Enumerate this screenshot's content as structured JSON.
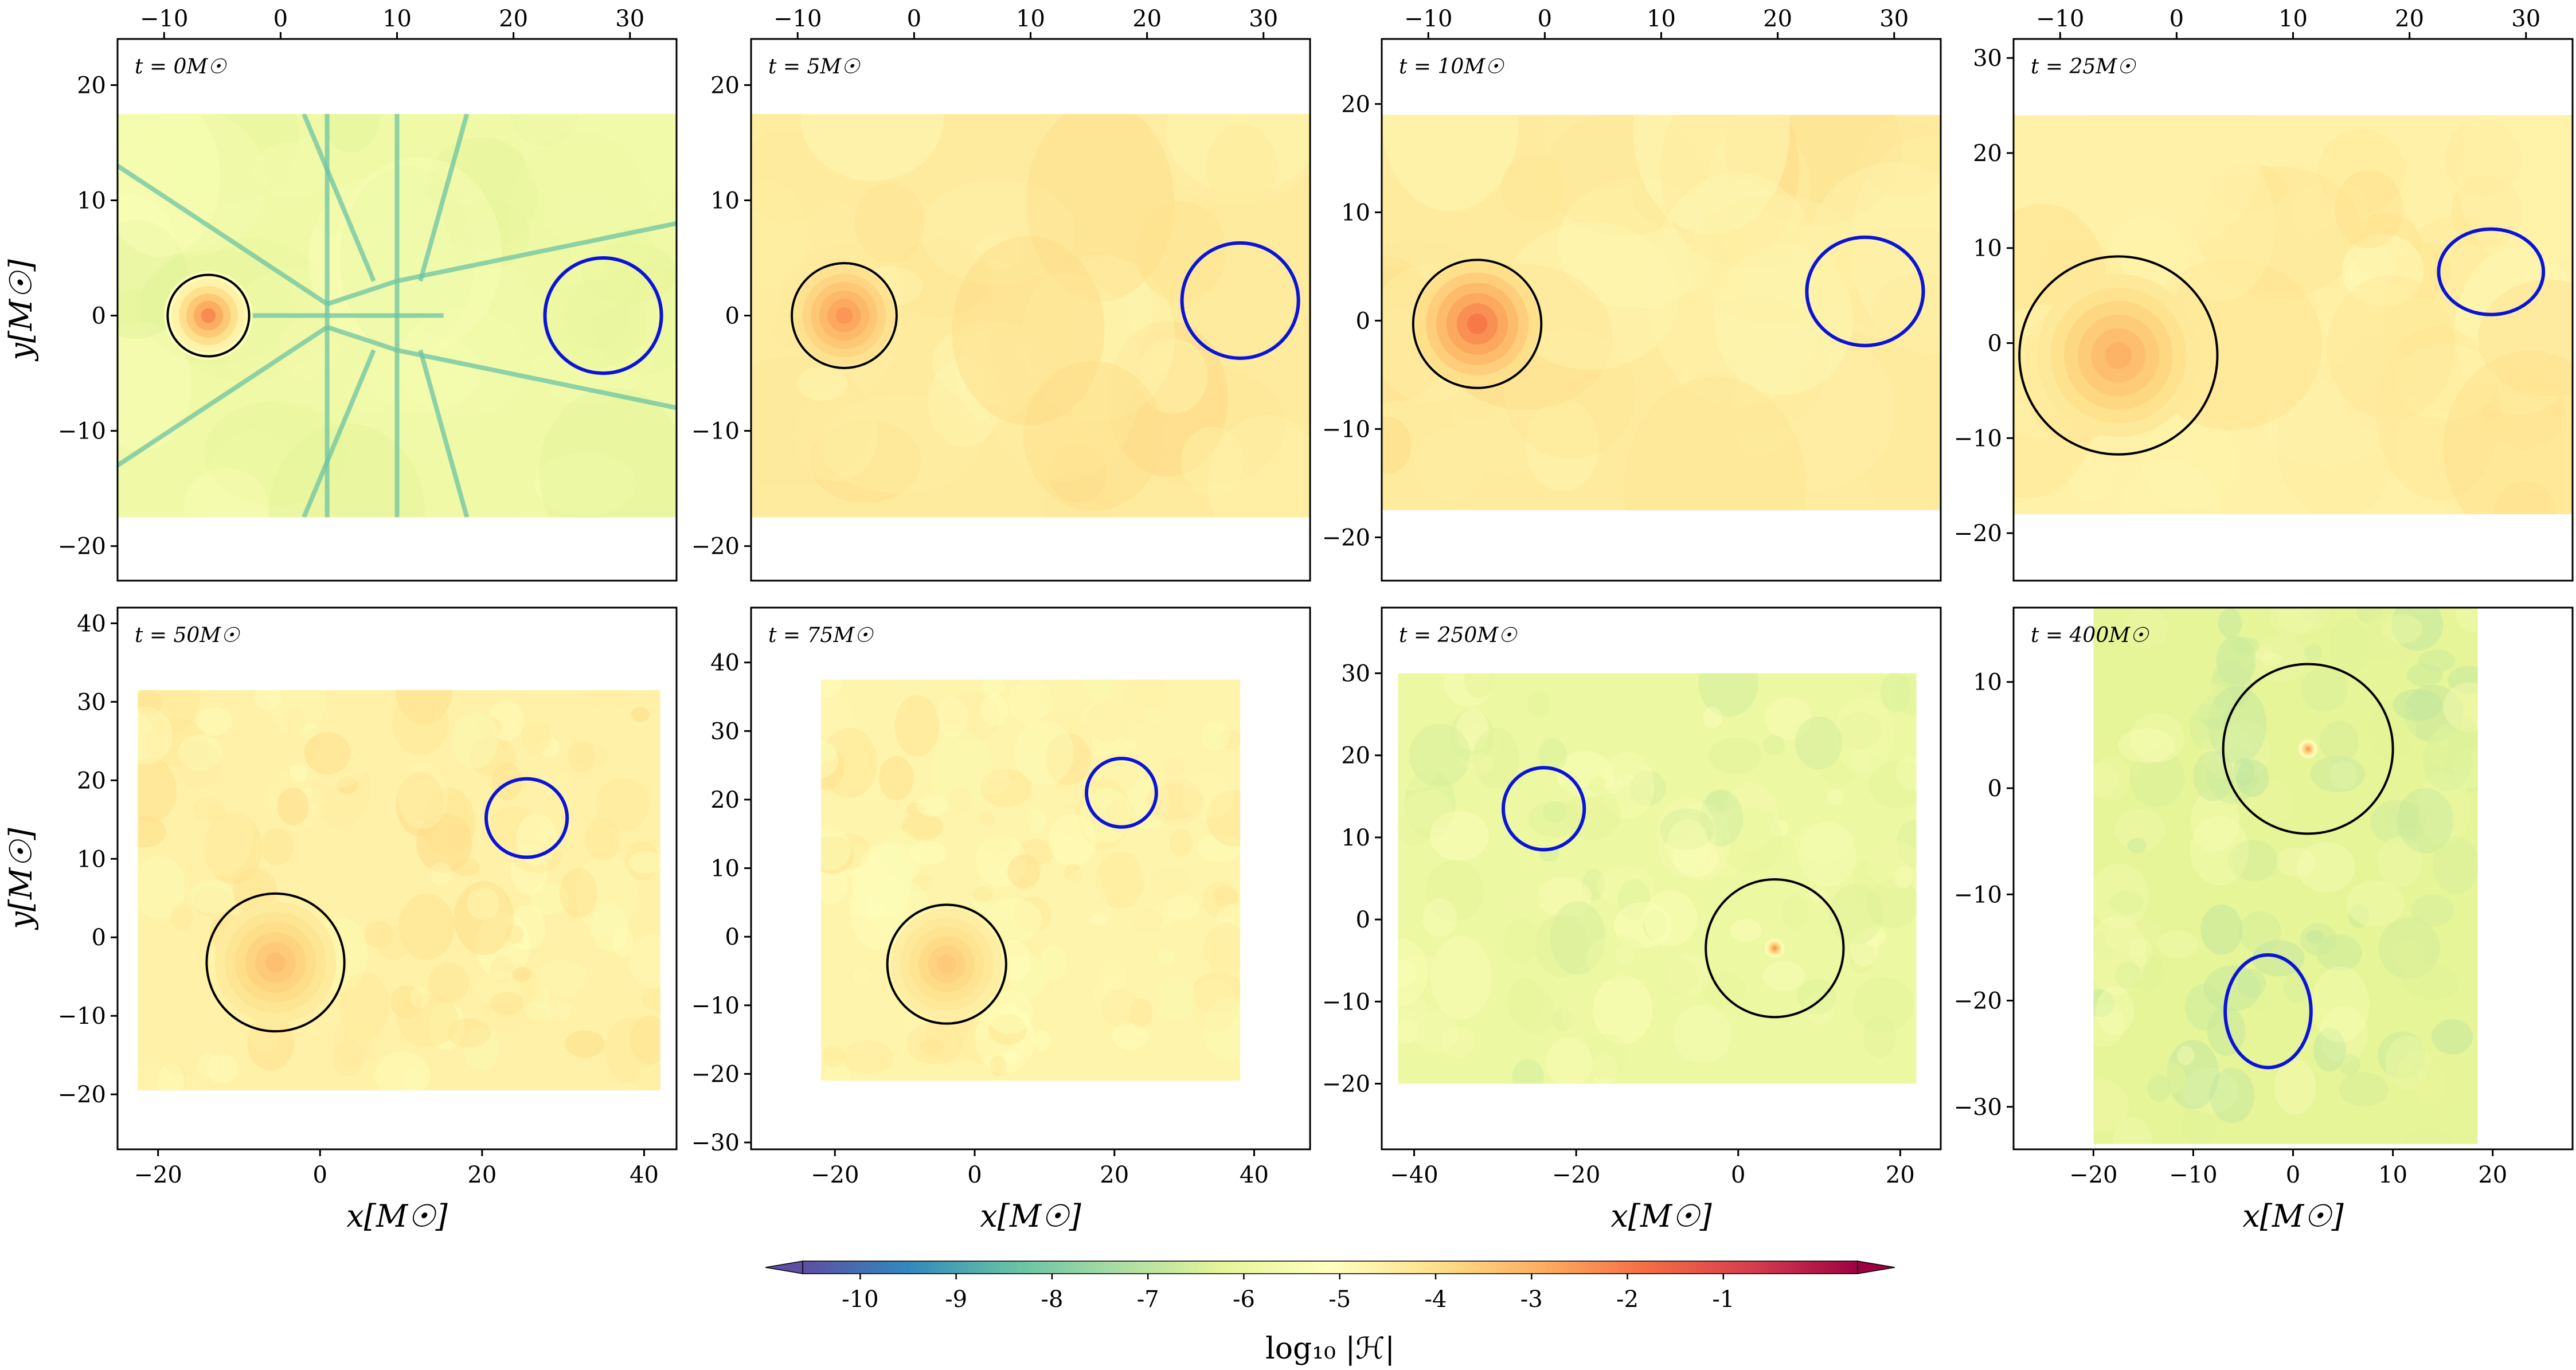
{
  "chart_data": {
    "type": "heatmap",
    "colorbar": {
      "label": "log₁₀ |ℋ|",
      "range": [
        -10.6,
        0.4
      ],
      "ticks": [
        -10,
        -9,
        -8,
        -7,
        -6,
        -5,
        -4,
        -3,
        -2,
        -1
      ],
      "tick_labels": [
        "-10",
        "-9",
        "-8",
        "-7",
        "-6",
        "-5",
        "-4",
        "-3",
        "-2",
        "-1"
      ],
      "extend": "both",
      "colormap": [
        "#5e4fa2",
        "#3288bd",
        "#66c2a5",
        "#abdda4",
        "#e6f598",
        "#ffffbf",
        "#fee08b",
        "#fdae61",
        "#f46d43",
        "#d53e4f",
        "#9e0142"
      ]
    },
    "panels": [
      {
        "time_label": "t = 0M☉",
        "xlim": [
          -14,
          34
        ],
        "ylim": [
          -23,
          24
        ],
        "xticks": [
          -10,
          0,
          10,
          20,
          30
        ],
        "yticks": [
          -20,
          -10,
          0,
          10,
          20
        ],
        "xaxis_position": "top",
        "ylabel": "y[M☉]",
        "xlabel": "",
        "field_extent": {
          "x": [
            -14,
            34
          ],
          "y": [
            -17.5,
            17.5
          ]
        },
        "field_mean": -5.8,
        "black_hole": {
          "x": -6.2,
          "y": 0,
          "r": 3.5
        },
        "source": {
          "x": 27.7,
          "y": 0,
          "r": 5
        },
        "hotspots": [
          {
            "x": -6.2,
            "y": 0,
            "r": 3.8,
            "v": -2.3
          }
        ]
      },
      {
        "time_label": "t = 5M☉",
        "xlim": [
          -14,
          34
        ],
        "ylim": [
          -23,
          24
        ],
        "xticks": [
          -10,
          0,
          10,
          20,
          30
        ],
        "yticks": [
          -20,
          -10,
          0,
          10,
          20
        ],
        "xaxis_position": "top",
        "ylabel": "",
        "xlabel": "",
        "field_extent": {
          "x": [
            -14,
            34
          ],
          "y": [
            -17.5,
            17.5
          ]
        },
        "field_mean": -4.4,
        "black_hole": {
          "x": -6,
          "y": 0,
          "r": 4.5
        },
        "source": {
          "x": 28,
          "y": 1.3,
          "r": 5
        },
        "hotspots": [
          {
            "x": -6,
            "y": 0,
            "r": 4.3,
            "v": -2.5
          }
        ]
      },
      {
        "time_label": "t = 10M☉",
        "xlim": [
          -14,
          34
        ],
        "ylim": [
          -24,
          26
        ],
        "xticks": [
          -10,
          0,
          10,
          20,
          30
        ],
        "yticks": [
          -20,
          -10,
          0,
          10,
          20
        ],
        "xaxis_position": "top",
        "ylabel": "",
        "xlabel": "",
        "field_extent": {
          "x": [
            -14,
            34
          ],
          "y": [
            -17.5,
            19
          ]
        },
        "field_mean": -4.4,
        "black_hole": {
          "x": -5.8,
          "y": -0.3,
          "r": 5.5
        },
        "source": {
          "x": 27.5,
          "y": 2.7,
          "r": 5
        },
        "hotspots": [
          {
            "x": -5.8,
            "y": -0.3,
            "r": 5.3,
            "v": -2.0
          }
        ]
      },
      {
        "time_label": "t = 25M☉",
        "xlim": [
          -14,
          34
        ],
        "ylim": [
          -25,
          32
        ],
        "xticks": [
          -10,
          0,
          10,
          20,
          30
        ],
        "yticks": [
          -20,
          -10,
          0,
          10,
          20,
          30
        ],
        "xaxis_position": "top",
        "ylabel": "",
        "xlabel": "",
        "field_extent": {
          "x": [
            -14,
            34
          ],
          "y": [
            -18,
            24
          ]
        },
        "field_mean": -4.6,
        "black_hole": {
          "x": -5,
          "y": -1.3,
          "r": 8.5
        },
        "source": {
          "x": 27,
          "y": 7.5,
          "r": 4.5
        },
        "hotspots": [
          {
            "x": -5,
            "y": -1.3,
            "r": 7,
            "v": -3.0
          }
        ]
      },
      {
        "time_label": "t = 50M☉",
        "xlim": [
          -25,
          44
        ],
        "ylim": [
          -27,
          42
        ],
        "xticks": [
          -20,
          0,
          20,
          40
        ],
        "yticks": [
          -20,
          -10,
          0,
          10,
          20,
          30,
          40
        ],
        "xaxis_position": "bottom",
        "ylabel": "y[M☉]",
        "xlabel": "x[M☉]",
        "field_extent": {
          "x": [
            -22.5,
            42
          ],
          "y": [
            -19.5,
            31.5
          ]
        },
        "field_mean": -4.6,
        "black_hole": {
          "x": -5.5,
          "y": -3.2,
          "r": 8.5
        },
        "source": {
          "x": 25.5,
          "y": 15.2,
          "r": 5
        },
        "hotspots": [
          {
            "x": -5.5,
            "y": -3.2,
            "r": 7.5,
            "v": -3.3
          }
        ]
      },
      {
        "time_label": "t = 75M☉",
        "xlim": [
          -32,
          48
        ],
        "ylim": [
          -31,
          48
        ],
        "xticks": [
          -20,
          0,
          20,
          40
        ],
        "yticks": [
          -30,
          -20,
          -10,
          0,
          10,
          20,
          30,
          40
        ],
        "xaxis_position": "bottom",
        "ylabel": "",
        "xlabel": "x[M☉]",
        "field_extent": {
          "x": [
            -22,
            38
          ],
          "y": [
            -21,
            37.5
          ]
        },
        "field_mean": -4.7,
        "black_hole": {
          "x": -4,
          "y": -4,
          "r": 8.5
        },
        "source": {
          "x": 21,
          "y": 21,
          "r": 5
        },
        "hotspots": [
          {
            "x": -4,
            "y": -4,
            "r": 8,
            "v": -3.5
          }
        ]
      },
      {
        "time_label": "t = 250M☉",
        "xlim": [
          -44,
          25
        ],
        "ylim": [
          -28,
          38
        ],
        "xticks": [
          -40,
          -20,
          0,
          20
        ],
        "yticks": [
          -20,
          -10,
          0,
          10,
          20,
          30
        ],
        "xaxis_position": "bottom",
        "ylabel": "",
        "xlabel": "x[M☉]",
        "field_extent": {
          "x": [
            -42,
            22
          ],
          "y": [
            -20,
            30
          ]
        },
        "field_mean": -5.9,
        "black_hole": {
          "x": 4.5,
          "y": -3.5,
          "r": 8.5
        },
        "source": {
          "x": -24,
          "y": 13.5,
          "r": 5
        },
        "hotspots": [
          {
            "x": 4.5,
            "y": -3.5,
            "r": 1.2,
            "v": -2.5
          }
        ]
      },
      {
        "time_label": "t = 400M☉",
        "xlim": [
          -28,
          28
        ],
        "ylim": [
          -34,
          17
        ],
        "xticks": [
          -20,
          -10,
          0,
          10,
          20
        ],
        "yticks": [
          -30,
          -20,
          -10,
          0,
          10
        ],
        "xaxis_position": "bottom",
        "ylabel": "",
        "xlabel": "x[M☉]",
        "field_extent": {
          "x": [
            -20,
            18.5
          ],
          "y": [
            -33.5,
            17
          ]
        },
        "field_mean": -6.2,
        "black_hole": {
          "x": 1.5,
          "y": 3.7,
          "r": 8.5
        },
        "source": {
          "x": -2.5,
          "y": -21,
          "r": 4.5,
          "rx": 4.3,
          "ry": 5.3
        },
        "hotspots": [
          {
            "x": 1.5,
            "y": 3.7,
            "r": 1.0,
            "v": -2.6
          }
        ]
      }
    ]
  }
}
